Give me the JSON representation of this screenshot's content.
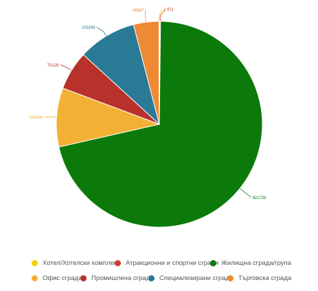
{
  "chart_data": {
    "type": "pie",
    "title": "",
    "legend_position": "bottom",
    "slices": [
      {
        "label": "Хотел/Хотелски комплекс",
        "value": 0,
        "value_label": "0",
        "color": "#f5d20a"
      },
      {
        "label": "Атракционни и спортни сгради",
        "value": 611,
        "value_label": "611",
        "color": "#d13b3b"
      },
      {
        "label": "Жилищна сграда/група",
        "value": 821726,
        "value_label": "821726",
        "color": "#0b7a0b"
      },
      {
        "label": "Офис сграда",
        "value": 106496,
        "value_label": "106496",
        "color": "#f2b134"
      },
      {
        "label": "Промишлена сграда",
        "value": 70129,
        "value_label": "70129",
        "color": "#b8312a"
      },
      {
        "label": "Специализирани сгради",
        "value": 105299,
        "value_label": "105299",
        "color": "#2a7a95"
      },
      {
        "label": "Търговска сграда",
        "value": 45867,
        "value_label": "45867",
        "color": "#ee8a34"
      }
    ],
    "draw_order": [
      2,
      3,
      4,
      5,
      6,
      0,
      1
    ]
  }
}
